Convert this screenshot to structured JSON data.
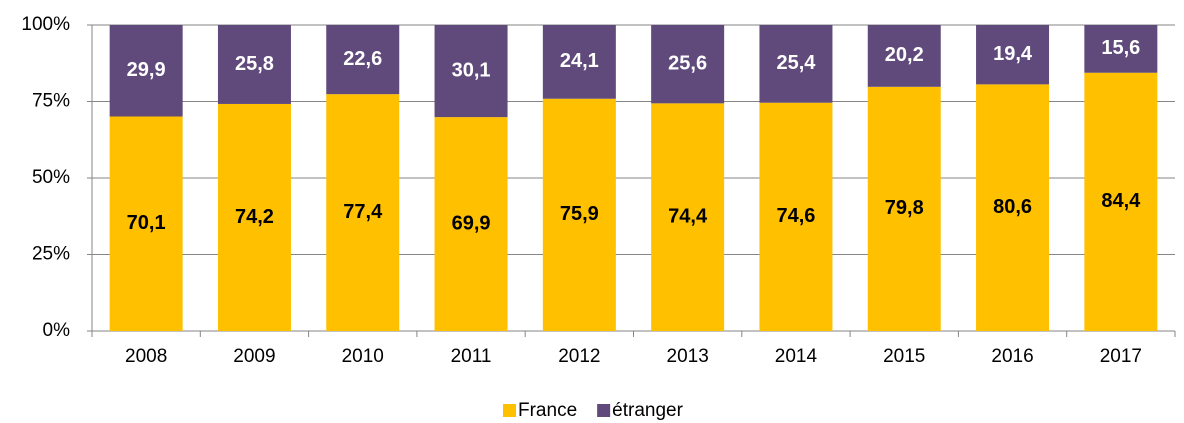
{
  "chart_data": {
    "type": "stacked_bar",
    "categories": [
      "2008",
      "2009",
      "2010",
      "2011",
      "2012",
      "2013",
      "2014",
      "2015",
      "2016",
      "2017"
    ],
    "series": [
      {
        "name": "France",
        "color": "#ffc000",
        "label_color": "#000000",
        "values": [
          70.1,
          74.2,
          77.4,
          69.9,
          75.9,
          74.4,
          74.6,
          79.8,
          80.6,
          84.4
        ],
        "value_labels": [
          "70,1",
          "74,2",
          "77,4",
          "69,9",
          "75,9",
          "74,4",
          "74,6",
          "79,8",
          "80,6",
          "84,4"
        ]
      },
      {
        "name": "étranger",
        "color": "#604a7b",
        "label_color": "#ffffff",
        "values": [
          29.9,
          25.8,
          22.6,
          30.1,
          24.1,
          25.6,
          25.4,
          20.2,
          19.4,
          15.6
        ],
        "value_labels": [
          "29,9",
          "25,8",
          "22,6",
          "30,1",
          "24,1",
          "25,6",
          "25,4",
          "20,2",
          "19,4",
          "15,6"
        ]
      }
    ],
    "ylim": [
      0,
      100
    ],
    "yticks": [
      {
        "value": 0,
        "label": "0%"
      },
      {
        "value": 25,
        "label": "25%"
      },
      {
        "value": 50,
        "label": "50%"
      },
      {
        "value": 75,
        "label": "75%"
      },
      {
        "value": 100,
        "label": "100%"
      }
    ],
    "grid": true,
    "legend": "bottom"
  }
}
